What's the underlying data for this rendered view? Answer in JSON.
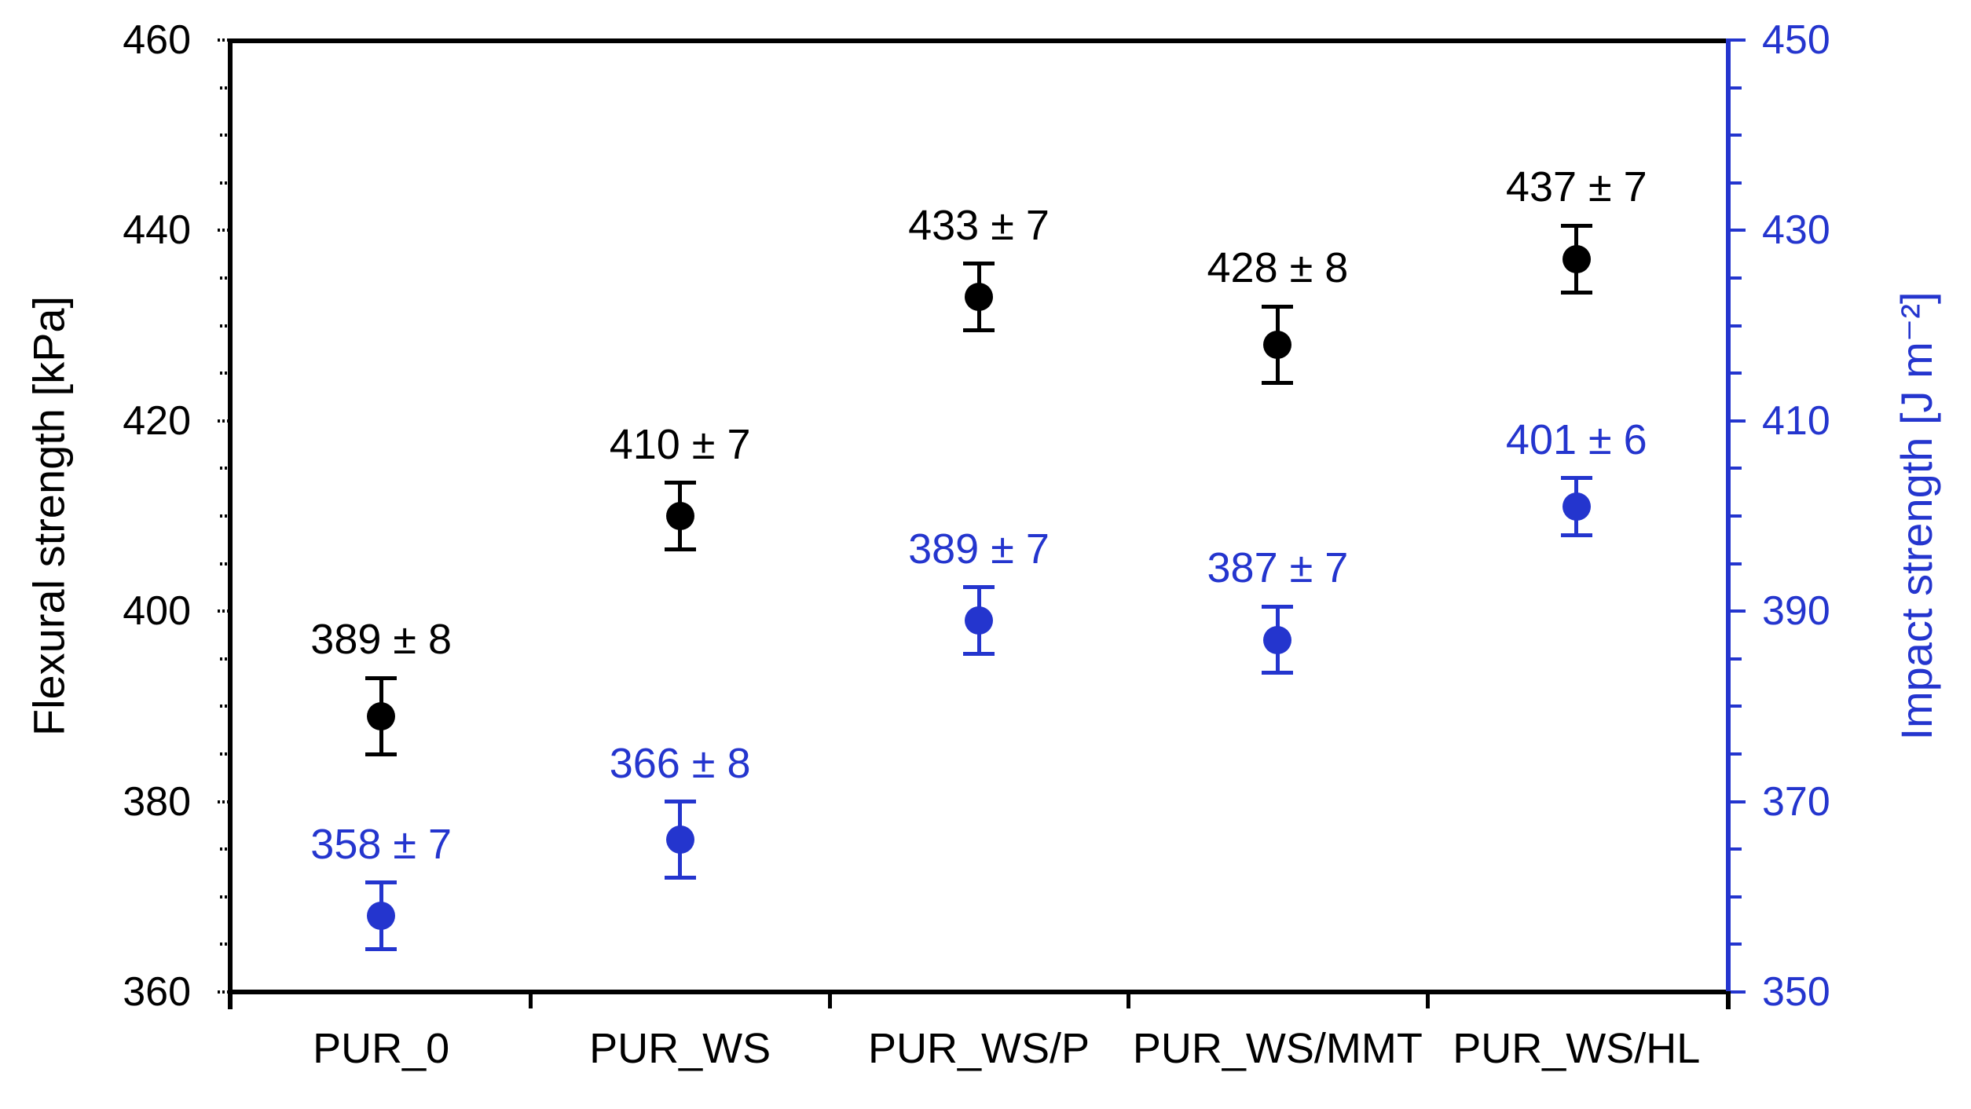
{
  "chart_data": {
    "type": "scatter",
    "title": "",
    "categories": [
      "PUR_0",
      "PUR_WS",
      "PUR_WS/P",
      "PUR_WS/MMT",
      "PUR_WS/HL"
    ],
    "series": [
      {
        "name": "Flexural strength",
        "axis": "left",
        "color": "#000000",
        "marker": "filled-circle",
        "values": [
          389,
          410,
          433,
          428,
          437
        ],
        "errors": [
          8,
          7,
          7,
          8,
          7
        ],
        "point_labels": [
          "389 ± 8",
          "410 ± 7",
          "433 ± 7",
          "428 ± 8",
          "437 ± 7"
        ]
      },
      {
        "name": "Impact strength",
        "axis": "right",
        "color": "#2435CE",
        "marker": "filled-circle",
        "values": [
          358,
          366,
          389,
          387,
          401
        ],
        "errors": [
          7,
          8,
          7,
          7,
          6
        ],
        "point_labels": [
          "358 ± 7",
          "366 ± 8",
          "389 ± 7",
          "387 ± 7",
          "401 ± 6"
        ]
      }
    ],
    "axes": {
      "left": {
        "title": "Flexural strength [kPa]",
        "min": 360,
        "max": 460,
        "major_step": 20,
        "minor_step": 5,
        "tick_labels": [
          "460",
          "440",
          "420",
          "400",
          "380",
          "360"
        ],
        "color": "#000000",
        "tick_style": "dotted"
      },
      "right": {
        "title": "Impact strength [J m⁻²]",
        "min": 350,
        "max": 450,
        "major_step": 20,
        "minor_step": 5,
        "tick_labels": [
          "450",
          "430",
          "410",
          "390",
          "370",
          "350"
        ],
        "color": "#2435CE",
        "tick_style": "solid"
      },
      "x": {
        "title": "",
        "tick_positions": "category-boundaries"
      }
    },
    "grid": false,
    "legend": false
  }
}
